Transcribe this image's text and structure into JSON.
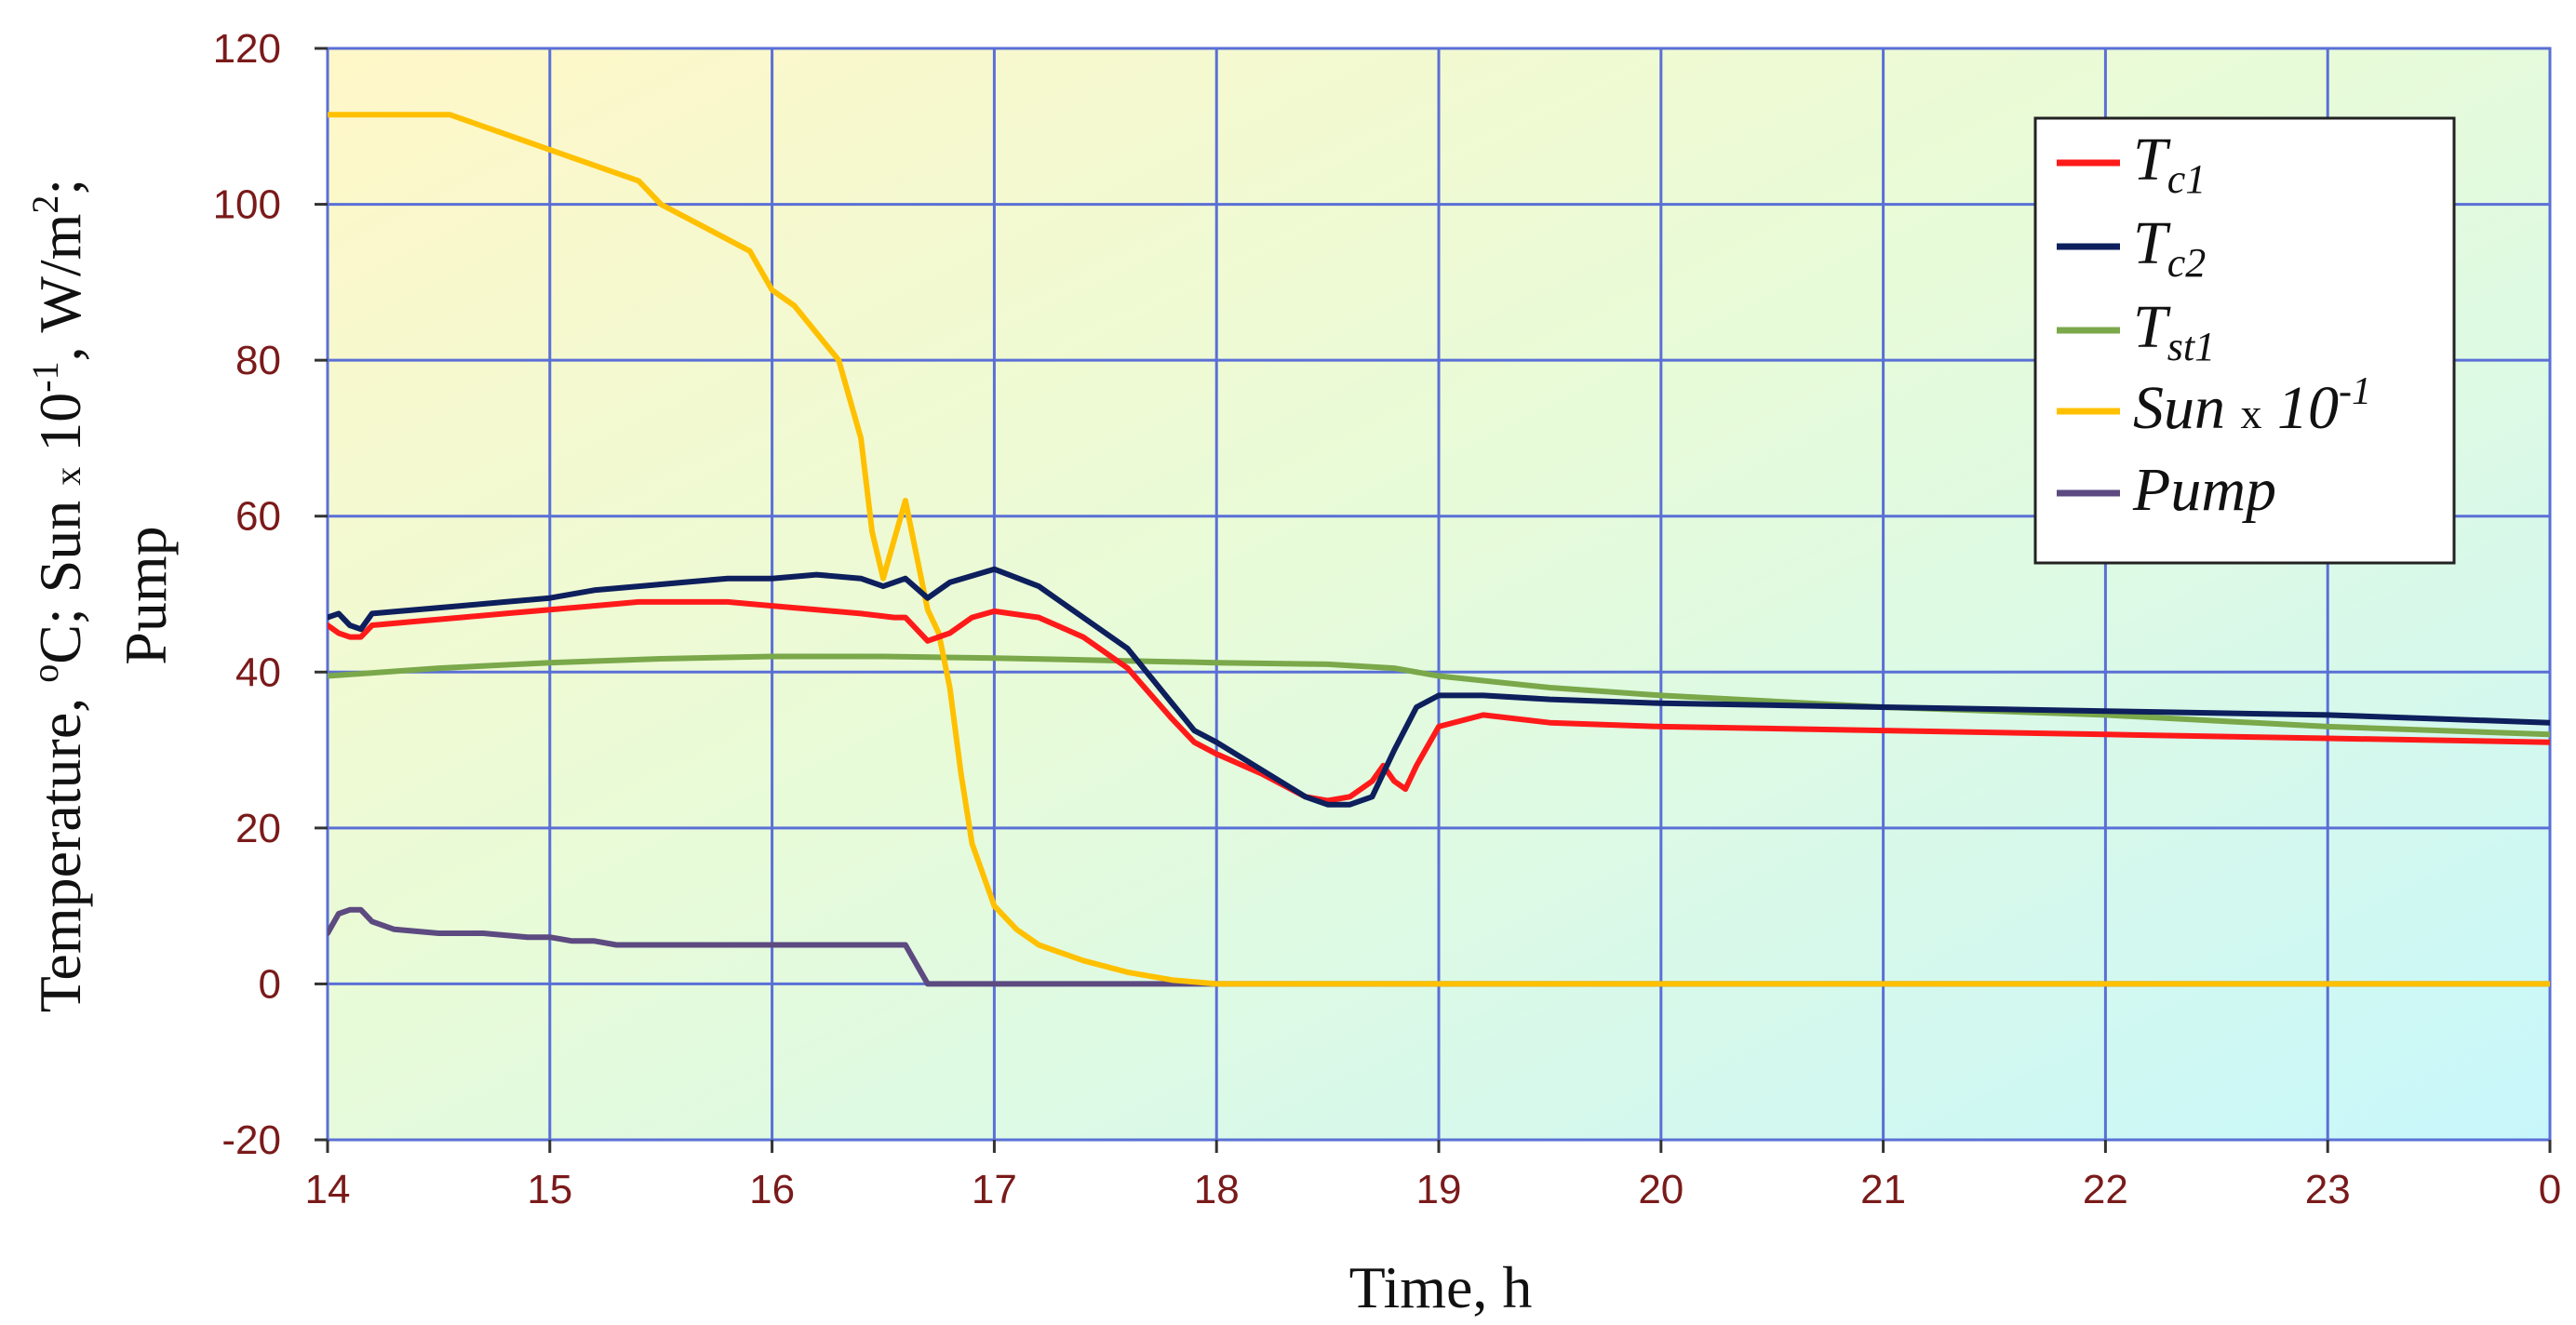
{
  "chart_data": {
    "type": "line",
    "xlabel": "Time, h",
    "ylabel": {
      "line1_a": "Temperature, ",
      "line1_sup1": "o",
      "line1_b": "C;  Sun ",
      "line1_times": "x",
      "line1_c": " 10",
      "line1_sup2": "-1",
      "line1_d": ", W/m",
      "line1_sup3": "2",
      "line1_e": ";",
      "line2": "Pump"
    },
    "ylim": [
      -20,
      120
    ],
    "yticks": [
      "-20",
      "0",
      "20",
      "40",
      "60",
      "80",
      "100",
      "120"
    ],
    "xlim": [
      14,
      24
    ],
    "xticks": [
      "14",
      "15",
      "16",
      "17",
      "18",
      "19",
      "20",
      "21",
      "22",
      "23",
      "0"
    ],
    "grid": true,
    "legend_position": "top-right",
    "legend": [
      {
        "main": "T",
        "sub": "c1",
        "color": "#ff1a1a"
      },
      {
        "main": "T",
        "sub": "c2",
        "color": "#0d1f5c"
      },
      {
        "main": "T",
        "sub": "st1",
        "color": "#7aa84a"
      },
      {
        "main": "Sun ",
        "times": "x",
        "after": " 10",
        "sup": "-1",
        "color": "#ffc000"
      },
      {
        "main": "Pump",
        "color": "#5c4a80"
      }
    ],
    "series": [
      {
        "name": "Tc1",
        "color": "#ff1a1a",
        "x": [
          14,
          14.05,
          14.1,
          14.15,
          14.2,
          14.4,
          14.6,
          14.8,
          15.0,
          15.2,
          15.4,
          15.6,
          15.8,
          16.0,
          16.2,
          16.4,
          16.55,
          16.6,
          16.7,
          16.8,
          16.9,
          17.0,
          17.2,
          17.4,
          17.6,
          17.8,
          17.9,
          18.0,
          18.2,
          18.4,
          18.5,
          18.6,
          18.7,
          18.75,
          18.8,
          18.85,
          18.9,
          19.0,
          19.2,
          19.5,
          20,
          21,
          22,
          23,
          24
        ],
        "y": [
          46,
          45,
          44.5,
          44.5,
          46,
          46.5,
          47,
          47.5,
          48,
          48.5,
          49,
          49,
          49,
          48.5,
          48,
          47.5,
          47,
          47,
          44,
          45,
          47,
          47.8,
          47,
          44.5,
          40.5,
          34,
          31,
          29.5,
          27,
          24,
          23.5,
          24,
          26,
          28,
          26,
          25,
          28,
          33,
          34.5,
          33.5,
          33,
          32.5,
          32,
          31.5,
          31
        ]
      },
      {
        "name": "Tc2",
        "color": "#0d1f5c",
        "x": [
          14,
          14.05,
          14.1,
          14.15,
          14.2,
          14.4,
          14.6,
          14.8,
          15.0,
          15.2,
          15.4,
          15.6,
          15.8,
          16.0,
          16.2,
          16.4,
          16.5,
          16.6,
          16.7,
          16.8,
          17.0,
          17.2,
          17.4,
          17.6,
          17.8,
          17.9,
          18.0,
          18.2,
          18.4,
          18.5,
          18.6,
          18.7,
          18.8,
          18.9,
          19.0,
          19.2,
          19.5,
          20,
          21,
          22,
          23,
          24
        ],
        "y": [
          47,
          47.5,
          46,
          45.5,
          47.5,
          48,
          48.5,
          49,
          49.5,
          50.5,
          51,
          51.5,
          52,
          52,
          52.5,
          52,
          51,
          52,
          49.5,
          51.5,
          53.2,
          51,
          47,
          43,
          36,
          32.5,
          31,
          27.5,
          24,
          23,
          23,
          24,
          30,
          35.5,
          37,
          37,
          36.5,
          36,
          35.5,
          35,
          34.5,
          33.5
        ]
      },
      {
        "name": "Tst1",
        "color": "#7aa84a",
        "x": [
          14,
          14.5,
          15,
          15.5,
          16,
          16.5,
          17,
          17.5,
          18,
          18.5,
          18.8,
          19.0,
          19.5,
          20,
          21,
          22,
          23,
          24
        ],
        "y": [
          39.5,
          40.5,
          41.2,
          41.7,
          42,
          42,
          41.8,
          41.5,
          41.2,
          41,
          40.5,
          39.5,
          38,
          37,
          35.5,
          34.5,
          33,
          32
        ]
      },
      {
        "name": "Sun x 10-1",
        "color": "#ffc000",
        "x": [
          14,
          14.2,
          14.4,
          14.55,
          14.7,
          14.9,
          15.0,
          15.2,
          15.4,
          15.5,
          15.7,
          15.9,
          16.0,
          16.1,
          16.3,
          16.4,
          16.45,
          16.5,
          16.55,
          16.6,
          16.65,
          16.7,
          16.75,
          16.8,
          16.85,
          16.9,
          17.0,
          17.1,
          17.2,
          17.4,
          17.6,
          17.8,
          18.0,
          19,
          20,
          21,
          22,
          23,
          24
        ],
        "y": [
          111.5,
          111.5,
          111.5,
          111.5,
          110,
          108,
          107,
          105,
          103,
          100,
          97,
          94,
          89,
          87,
          80,
          70,
          58,
          52,
          57,
          62,
          55,
          48,
          45,
          38,
          27,
          18,
          10,
          7,
          5,
          3,
          1.5,
          0.5,
          0,
          0,
          0,
          0,
          0,
          0,
          0
        ]
      },
      {
        "name": "Pump",
        "color": "#5c4a80",
        "x": [
          14,
          14.05,
          14.1,
          14.15,
          14.2,
          14.3,
          14.5,
          14.7,
          14.9,
          15.0,
          15.1,
          15.2,
          15.3,
          15.4,
          15.5,
          15.6,
          15.7,
          15.8,
          15.9,
          16.0,
          16.1,
          16.2,
          16.3,
          16.4,
          16.5,
          16.6,
          16.7,
          17,
          18,
          19,
          20,
          21,
          22,
          23,
          24
        ],
        "y": [
          6.5,
          9,
          9.5,
          9.5,
          8,
          7,
          6.5,
          6.5,
          6,
          6,
          5.5,
          5.5,
          5,
          5,
          5,
          5,
          5,
          5,
          5,
          5,
          5,
          5,
          5,
          5,
          5,
          5,
          0,
          0,
          0,
          0,
          0,
          0,
          0,
          0,
          0
        ]
      }
    ]
  }
}
